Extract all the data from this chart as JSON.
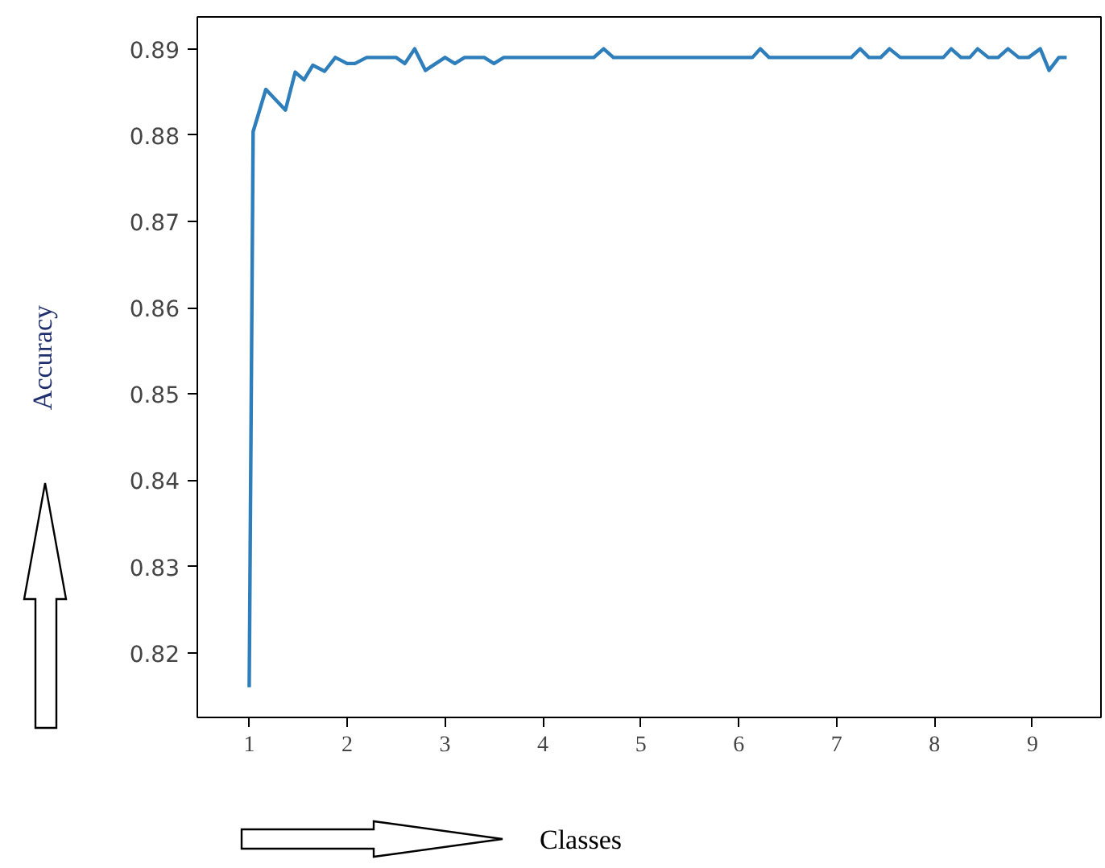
{
  "chart_data": {
    "type": "line",
    "xlabel": "Classes",
    "ylabel": "Accuracy",
    "xlim": [
      0.47,
      9.7
    ],
    "ylim": [
      0.8125,
      0.8937
    ],
    "xticks": [
      1,
      2,
      3,
      4,
      5,
      6,
      7,
      8,
      9
    ],
    "yticks": [
      0.82,
      0.83,
      0.84,
      0.85,
      0.86,
      0.87,
      0.88,
      0.89
    ],
    "marker": "none",
    "line_style": "solid",
    "series": [
      {
        "color": "#2f7ebc",
        "x": [
          1.0,
          1.04,
          1.17,
          1.37,
          1.47,
          1.56,
          1.65,
          1.77,
          1.88,
          2.0,
          2.08,
          2.2,
          2.5,
          2.59,
          2.69,
          2.8,
          3.0,
          3.1,
          3.2,
          3.4,
          3.5,
          3.6,
          4.52,
          4.62,
          4.72,
          6.14,
          6.22,
          6.31,
          7.15,
          7.24,
          7.33,
          7.45,
          7.54,
          7.65,
          8.09,
          8.17,
          8.27,
          8.36,
          8.44,
          8.55,
          8.65,
          8.75,
          8.86,
          8.96,
          9.08,
          9.17,
          9.27,
          9.35
        ],
        "values": [
          0.816,
          0.8804,
          0.8853,
          0.8829,
          0.8873,
          0.8864,
          0.8881,
          0.8874,
          0.889,
          0.8883,
          0.8883,
          0.889,
          0.889,
          0.8883,
          0.89,
          0.8875,
          0.889,
          0.8883,
          0.889,
          0.889,
          0.8883,
          0.889,
          0.889,
          0.89,
          0.889,
          0.889,
          0.89,
          0.889,
          0.889,
          0.89,
          0.889,
          0.889,
          0.89,
          0.889,
          0.889,
          0.89,
          0.889,
          0.889,
          0.89,
          0.889,
          0.889,
          0.89,
          0.889,
          0.889,
          0.89,
          0.8875,
          0.889,
          0.889
        ]
      }
    ]
  }
}
